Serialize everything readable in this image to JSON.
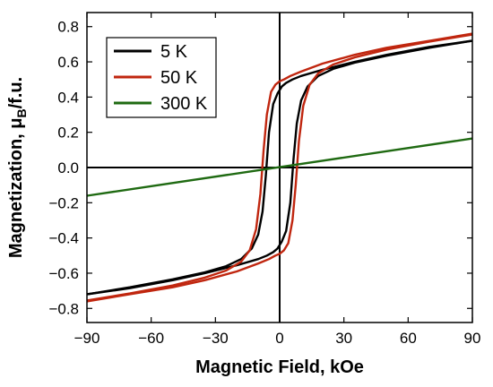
{
  "chart_data": {
    "type": "line",
    "title": "",
    "xlabel": "Magnetic Field, kOe",
    "ylabel_main": "Magnetization, μ",
    "ylabel_sub": "B",
    "ylabel_tail": "/f.u.",
    "xlim": [
      -90,
      90
    ],
    "ylim": [
      -0.88,
      0.88
    ],
    "xticks": [
      -90,
      -60,
      -30,
      0,
      30,
      60,
      90
    ],
    "yticks": [
      -0.8,
      -0.6,
      -0.4,
      -0.2,
      0.0,
      0.2,
      0.4,
      0.6,
      0.8
    ],
    "ytick_labels": [
      "−0.8",
      "−0.6",
      "−0.4",
      "−0.2",
      "0.0",
      "0.2",
      "0.4",
      "0.6",
      "0.8"
    ],
    "xtick_labels": [
      "−90",
      "−60",
      "−30",
      "0",
      "30",
      "60",
      "90"
    ],
    "legend_position": "top-left",
    "zero_lines": true,
    "series": [
      {
        "name": "5 K",
        "color": "#000000",
        "upper_branch": {
          "x": [
            -90,
            -70,
            -50,
            -35,
            -25,
            -18,
            -13,
            -10,
            -8,
            -6.5,
            -5,
            -3,
            -1,
            0,
            1,
            3,
            6,
            10,
            20,
            35,
            50,
            70,
            90
          ],
          "y": [
            -0.72,
            -0.68,
            -0.635,
            -0.595,
            -0.56,
            -0.52,
            -0.46,
            -0.38,
            -0.25,
            -0.05,
            0.2,
            0.36,
            0.42,
            0.44,
            0.46,
            0.48,
            0.5,
            0.52,
            0.555,
            0.6,
            0.64,
            0.685,
            0.72
          ]
        },
        "lower_branch": {
          "x": [
            90,
            70,
            50,
            35,
            25,
            18,
            13,
            10,
            8,
            6.5,
            5,
            3,
            1,
            0,
            -1,
            -3,
            -6,
            -10,
            -20,
            -35,
            -50,
            -70,
            -90
          ],
          "y": [
            0.72,
            0.68,
            0.635,
            0.595,
            0.56,
            0.52,
            0.46,
            0.38,
            0.25,
            0.05,
            -0.2,
            -0.36,
            -0.42,
            -0.44,
            -0.46,
            -0.48,
            -0.5,
            -0.52,
            -0.555,
            -0.6,
            -0.64,
            -0.685,
            -0.72
          ]
        }
      },
      {
        "name": "50 K",
        "color": "#c0260f",
        "upper_branch": {
          "x": [
            -90,
            -70,
            -50,
            -35,
            -25,
            -18,
            -14,
            -11,
            -9,
            -7.5,
            -6,
            -4,
            -2,
            0,
            2,
            5,
            10,
            20,
            35,
            50,
            70,
            90
          ],
          "y": [
            -0.755,
            -0.715,
            -0.67,
            -0.625,
            -0.585,
            -0.535,
            -0.47,
            -0.35,
            -0.15,
            0.1,
            0.3,
            0.43,
            0.47,
            0.49,
            0.5,
            0.52,
            0.545,
            0.59,
            0.64,
            0.68,
            0.72,
            0.76
          ]
        },
        "lower_branch": {
          "x": [
            90,
            70,
            50,
            35,
            25,
            18,
            14,
            11,
            9,
            7.5,
            6,
            4,
            2,
            0,
            -2,
            -5,
            -10,
            -20,
            -35,
            -50,
            -70,
            -90
          ],
          "y": [
            0.755,
            0.715,
            0.67,
            0.625,
            0.585,
            0.535,
            0.47,
            0.35,
            0.15,
            -0.1,
            -0.3,
            -0.43,
            -0.47,
            -0.49,
            -0.5,
            -0.52,
            -0.545,
            -0.59,
            -0.64,
            -0.68,
            -0.72,
            -0.76
          ]
        }
      },
      {
        "name": "300 K",
        "color": "#1f6a12",
        "x": [
          -90,
          90
        ],
        "y": [
          -0.16,
          0.165
        ]
      }
    ]
  }
}
